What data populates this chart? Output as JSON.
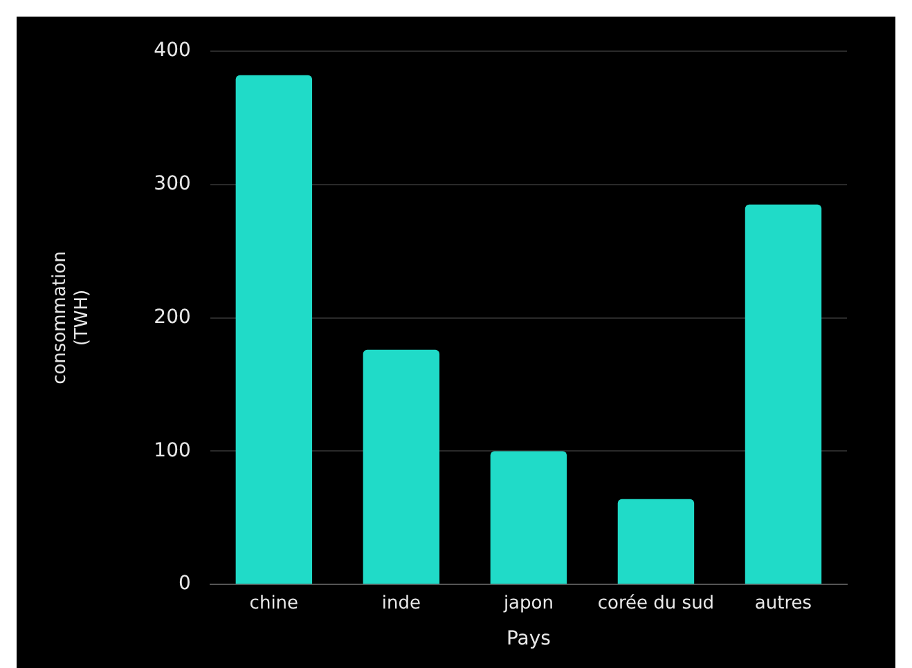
{
  "chart_data": {
    "type": "bar",
    "xlabel": "Pays",
    "ylabel": "consommation (TWH)",
    "categories": [
      "chine",
      "inde",
      "japon",
      "corée du sud",
      "autres"
    ],
    "values": [
      382,
      176,
      100,
      64,
      285
    ],
    "color": "#20dbc8",
    "ylim": [
      0,
      400
    ],
    "yticks": [
      0,
      100,
      200,
      300,
      400
    ],
    "grid": "y"
  }
}
